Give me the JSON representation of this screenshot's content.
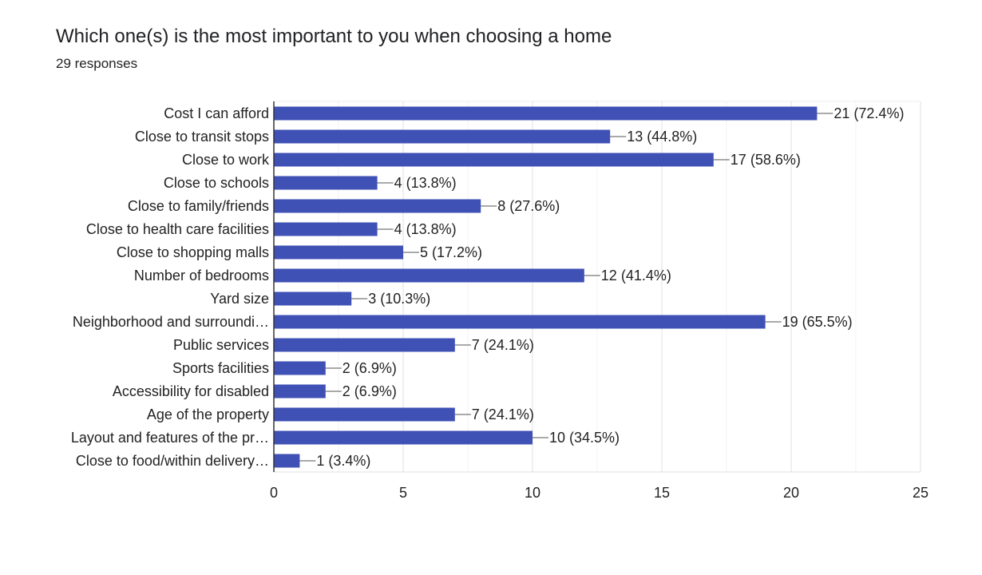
{
  "header": {
    "title": "Which one(s) is the most important to you when choosing a home",
    "subtitle": "29 responses"
  },
  "colors": {
    "bar": "#3f51b5",
    "grid": "#e0e0e0",
    "axis": "#333333",
    "text": "#222222"
  },
  "chart_data": {
    "type": "bar",
    "orientation": "horizontal",
    "title": "Which one(s) is the most important to you when choosing a home",
    "subtitle": "29 responses",
    "categories": [
      "Cost I can afford",
      "Close to transit stops",
      "Close to work",
      "Close to schools",
      "Close to family/friends",
      "Close to health care facilities",
      "Close to shopping malls",
      "Number of bedrooms",
      "Yard size",
      "Neighborhood and surroundi…",
      "Public services",
      "Sports facilities",
      "Accessibility for disabled",
      "Age of the property",
      "Layout and features of the pr…",
      "Close to food/within delivery…"
    ],
    "values": [
      21,
      13,
      17,
      4,
      8,
      4,
      5,
      12,
      3,
      19,
      7,
      2,
      2,
      7,
      10,
      1
    ],
    "data_labels": [
      "21 (72.4%)",
      "13 (44.8%)",
      "17 (58.6%)",
      "4 (13.8%)",
      "8 (27.6%)",
      "4 (13.8%)",
      "5 (17.2%)",
      "12 (41.4%)",
      "3 (10.3%)",
      "19 (65.5%)",
      "7 (24.1%)",
      "2 (6.9%)",
      "2 (6.9%)",
      "7 (24.1%)",
      "10 (34.5%)",
      "1 (3.4%)"
    ],
    "x_ticks": [
      "0",
      "5",
      "10",
      "15",
      "20",
      "25"
    ],
    "xlim": [
      0,
      25
    ],
    "grid": true,
    "legend": "none"
  }
}
